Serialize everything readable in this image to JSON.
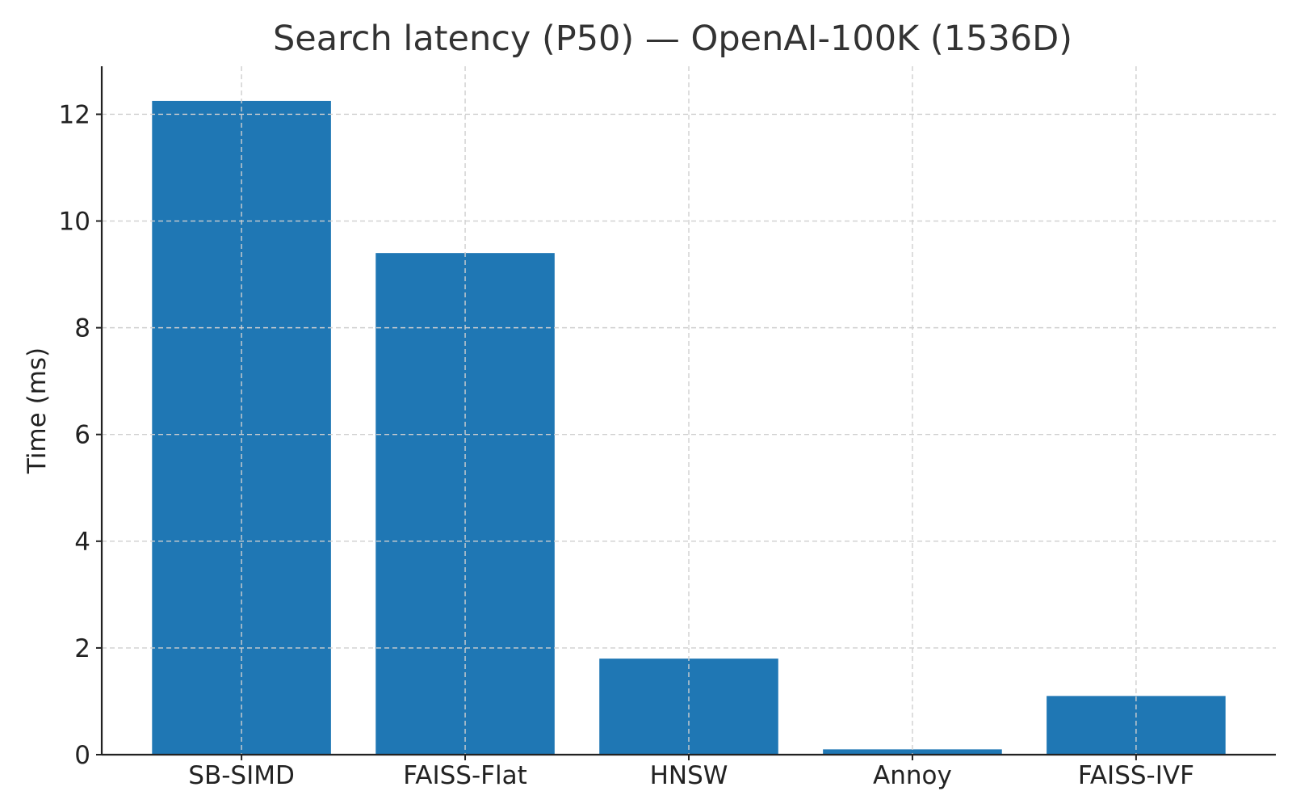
{
  "chart_data": {
    "type": "bar",
    "title": "Search latency (P50) — OpenAI-100K (1536D)",
    "xlabel": "",
    "ylabel": "Time (ms)",
    "categories": [
      "SB-SIMD",
      "FAISS-Flat",
      "HNSW",
      "Annoy",
      "FAISS-IVF"
    ],
    "values": [
      12.25,
      9.4,
      1.8,
      0.1,
      1.1
    ],
    "ylim": [
      0,
      12.9
    ],
    "yticks": [
      0,
      2,
      4,
      6,
      8,
      10,
      12
    ],
    "grid": true,
    "bar_color": "#1f77b4"
  }
}
